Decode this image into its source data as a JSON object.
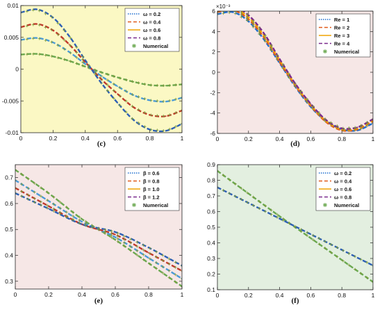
{
  "panels": [
    {
      "caption": "(c)",
      "background": "#fbf8c4",
      "xlim": [
        0,
        1
      ],
      "ylim": [
        -0.01,
        0.01
      ],
      "yticks": [
        -0.01,
        -0.005,
        0,
        0.005,
        0.01
      ],
      "ytick_labels": [
        "-0.01",
        "-0.005",
        "0",
        "0.005",
        "0.01"
      ],
      "xticks": [
        0,
        0.2,
        0.4,
        0.6,
        0.8,
        1
      ],
      "xtick_labels": [
        "0",
        "0.2",
        "0.4",
        "0.6",
        "0.8",
        "1"
      ],
      "legend": [
        {
          "label": "ω = 0.2",
          "color": "#1f6fcf",
          "dash": "1.5,1.5"
        },
        {
          "label": "ω = 0.4",
          "color": "#e05a1a",
          "dash": "5,3"
        },
        {
          "label": "ω = 0.6",
          "color": "#f0a400",
          "dash": ""
        },
        {
          "label": "ω = 0.8",
          "color": "#7a2a8c",
          "dash": "5,3"
        },
        {
          "label": "Numerical",
          "color": "#6aa84f",
          "marker": true
        }
      ],
      "chart_data": {
        "type": "line",
        "x": [
          0,
          0.1,
          0.2,
          0.3,
          0.4,
          0.5,
          0.6,
          0.7,
          0.8,
          0.9,
          1.0
        ],
        "series": [
          {
            "name": "ω = 0.2",
            "color": "#6aa84f",
            "values": [
              0.0023,
              0.0024,
              0.002,
              0.0013,
              0.0004,
              -0.0005,
              -0.0013,
              -0.002,
              -0.0025,
              -0.0026,
              -0.0024
            ]
          },
          {
            "name": "ω = 0.4",
            "color": "#4a9ad8",
            "values": [
              0.0046,
              0.0049,
              0.0042,
              0.0027,
              0.0008,
              -0.0011,
              -0.0027,
              -0.0041,
              -0.0049,
              -0.0051,
              -0.0045
            ]
          },
          {
            "name": "ω = 0.6",
            "color": "#c0392b",
            "values": [
              0.0066,
              0.0071,
              0.0061,
              0.0039,
              0.0011,
              -0.0016,
              -0.0039,
              -0.006,
              -0.0072,
              -0.0074,
              -0.0065
            ]
          },
          {
            "name": "ω = 0.8",
            "color": "#2d5fb5",
            "values": [
              0.0089,
              0.0094,
              0.0081,
              0.0052,
              0.0014,
              -0.0022,
              -0.0053,
              -0.008,
              -0.0095,
              -0.0097,
              -0.0086
            ]
          }
        ]
      }
    },
    {
      "caption": "(d)",
      "background": "#f6e7e6",
      "xlim": [
        0,
        1
      ],
      "ylim": [
        -6,
        6
      ],
      "yticks": [
        -6,
        -4,
        -2,
        0,
        2,
        4,
        6
      ],
      "ytick_labels": [
        "-6",
        "-4",
        "-2",
        "0",
        "2",
        "4",
        "6"
      ],
      "xticks": [
        0,
        0.2,
        0.4,
        0.6,
        0.8,
        1
      ],
      "xtick_labels": [
        "0",
        "0.2",
        "0.4",
        "0.6",
        "0.8",
        "1"
      ],
      "exponent_label": "×10⁻³",
      "legend": [
        {
          "label": "Re = 1",
          "color": "#1f6fcf",
          "dash": "1.5,1.5"
        },
        {
          "label": "Re = 2",
          "color": "#e05a1a",
          "dash": "5,3"
        },
        {
          "label": "Re = 3",
          "color": "#f0a400",
          "dash": ""
        },
        {
          "label": "Re = 4",
          "color": "#7a2a8c",
          "dash": "5,3"
        },
        {
          "label": "Numerical",
          "color": "#6aa84f",
          "marker": true
        }
      ],
      "chart_data": {
        "type": "line",
        "x": [
          0,
          0.1,
          0.2,
          0.3,
          0.4,
          0.5,
          0.6,
          0.7,
          0.8,
          0.9,
          1.0
        ],
        "series": [
          {
            "name": "Re = 1",
            "color": "#1f6fcf",
            "values": [
              5.7,
              5.9,
              5.0,
              3.2,
              0.9,
              -1.4,
              -3.4,
              -4.8,
              -5.6,
              -5.7,
              -5.0
            ]
          },
          {
            "name": "Re = 2",
            "color": "#e05a1a",
            "values": [
              5.9,
              6.1,
              5.2,
              3.4,
              1.0,
              -1.3,
              -3.3,
              -4.9,
              -5.7,
              -5.6,
              -4.8
            ]
          },
          {
            "name": "Re = 3",
            "color": "#f0a400",
            "values": [
              6.1,
              6.3,
              5.4,
              3.6,
              1.2,
              -1.2,
              -3.2,
              -4.8,
              -5.6,
              -5.5,
              -4.7
            ]
          },
          {
            "name": "Re = 4",
            "color": "#7a2a8c",
            "values": [
              6.3,
              6.5,
              5.6,
              3.8,
              1.3,
              -1.1,
              -3.1,
              -4.7,
              -5.5,
              -5.4,
              -4.6
            ]
          }
        ]
      }
    },
    {
      "caption": "(e)",
      "background": "#f6e7e6",
      "xlim": [
        0,
        1
      ],
      "ylim": [
        0.27,
        0.75
      ],
      "yticks": [
        0.3,
        0.4,
        0.5,
        0.6,
        0.7
      ],
      "ytick_labels": [
        "0.3",
        "0.4",
        "0.5",
        "0.6",
        "0.7"
      ],
      "xticks": [
        0,
        0.2,
        0.4,
        0.6,
        0.8,
        1
      ],
      "xtick_labels": [
        "0",
        "0.2",
        "0.4",
        "0.6",
        "0.8",
        "1"
      ],
      "legend": [
        {
          "label": "β = 0.6",
          "color": "#1f6fcf",
          "dash": "1.5,1.5"
        },
        {
          "label": "β = 0.8",
          "color": "#e05a1a",
          "dash": "5,3"
        },
        {
          "label": "β = 1.0",
          "color": "#f0a400",
          "dash": ""
        },
        {
          "label": "β = 1.2",
          "color": "#7a2a8c",
          "dash": "5,3"
        },
        {
          "label": "Numerical",
          "color": "#6aa84f",
          "marker": true
        }
      ],
      "chart_data": {
        "type": "line",
        "x": [
          0,
          0.2,
          0.4,
          0.6,
          0.8,
          1.0
        ],
        "series": [
          {
            "name": "β = 0.6",
            "color": "#6aa84f",
            "values": [
              0.73,
              0.64,
              0.54,
              0.46,
              0.37,
              0.28
            ]
          },
          {
            "name": "β = 0.8",
            "color": "#4a9ad8",
            "values": [
              0.69,
              0.61,
              0.53,
              0.47,
              0.39,
              0.31
            ]
          },
          {
            "name": "β = 1.0",
            "color": "#c0392b",
            "values": [
              0.66,
              0.59,
              0.52,
              0.48,
              0.41,
              0.34
            ]
          },
          {
            "name": "β = 1.2",
            "color": "#2d5fb5",
            "values": [
              0.64,
              0.58,
              0.52,
              0.49,
              0.43,
              0.36
            ]
          }
        ]
      }
    },
    {
      "caption": "(f)",
      "background": "#e3efe0",
      "xlim": [
        0,
        1
      ],
      "ylim": [
        0.1,
        0.9
      ],
      "yticks": [
        0.1,
        0.2,
        0.3,
        0.4,
        0.5,
        0.6,
        0.7,
        0.8,
        0.9
      ],
      "ytick_labels": [
        "0.1",
        "0.2",
        "0.3",
        "0.4",
        "0.5",
        "0.6",
        "0.7",
        "0.8",
        "0.9"
      ],
      "xticks": [
        0,
        0.2,
        0.4,
        0.6,
        0.8,
        1
      ],
      "xtick_labels": [
        "0",
        "0.2",
        "0.4",
        "0.6",
        "0.8",
        "1"
      ],
      "legend": [
        {
          "label": "ω = 0.2",
          "color": "#1f6fcf",
          "dash": "1.5,1.5"
        },
        {
          "label": "ω = 0.4",
          "color": "#e05a1a",
          "dash": "5,3"
        },
        {
          "label": "ω = 0.6",
          "color": "#f0a400",
          "dash": ""
        },
        {
          "label": "ω = 0.8",
          "color": "#7a2a8c",
          "dash": "5,3"
        },
        {
          "label": "Numerical",
          "color": "#6aa84f",
          "marker": true
        }
      ],
      "chart_data": {
        "type": "line",
        "x": [
          0,
          0.2,
          0.4,
          0.6,
          0.8,
          1.0
        ],
        "series": [
          {
            "name": "ω = 0.2",
            "color": "#6aa84f",
            "values": [
              0.86,
              0.715,
              0.57,
              0.43,
              0.29,
              0.15
            ]
          },
          {
            "name": "ω = 0.4",
            "color": "#2d5fb5",
            "values": [
              0.755,
              0.655,
              0.555,
              0.455,
              0.355,
              0.255
            ]
          }
        ]
      }
    }
  ]
}
